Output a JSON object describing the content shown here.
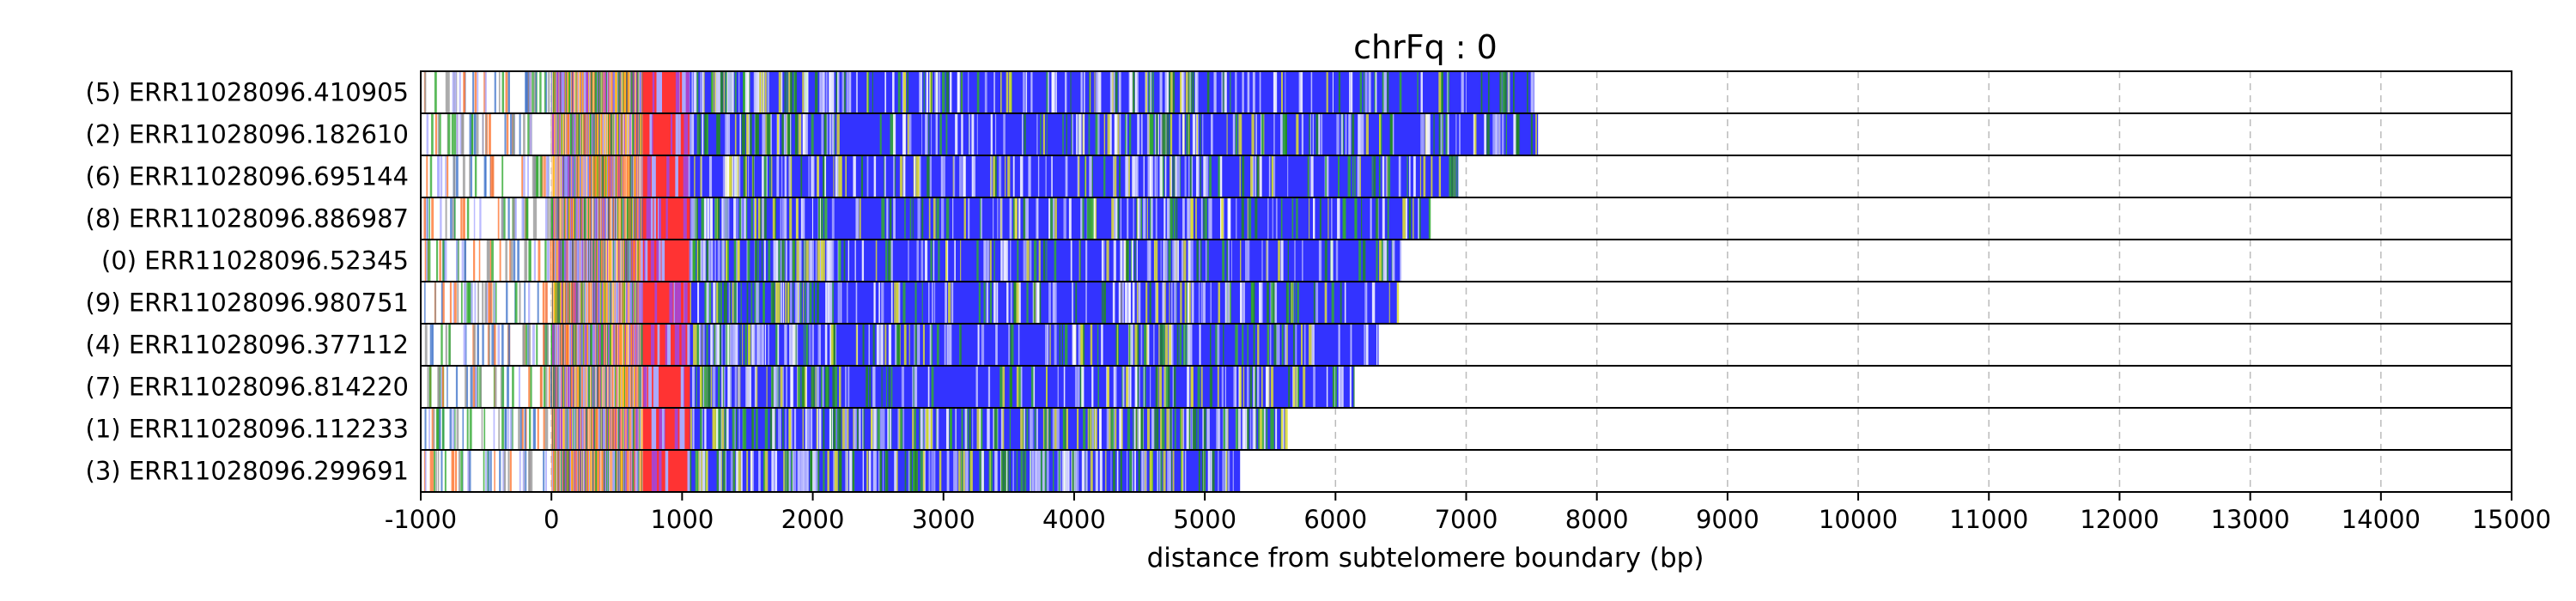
{
  "chart_data": {
    "type": "bar",
    "title": "chrFq : 0",
    "xlabel": "distance from subtelomere boundary (bp)",
    "ylabel": "",
    "xlim": [
      -1000,
      15000
    ],
    "xticks": [
      -1000,
      0,
      1000,
      2000,
      3000,
      4000,
      5000,
      6000,
      7000,
      8000,
      9000,
      10000,
      11000,
      12000,
      13000,
      14000,
      15000
    ],
    "grid": "vertical dashed",
    "colors": {
      "main": "#3333ff",
      "region": "#ff3333",
      "orange": "#ff7733",
      "green": "#33aa33",
      "yellow": "#dddd33",
      "light": "#aaaaff",
      "gold": "#ffbb22",
      "purple": "#aa44cc"
    },
    "reads": [
      {
        "label": "(5) ERR11028096.410905",
        "end": 7520
      },
      {
        "label": "(2) ERR11028096.182610",
        "end": 7550
      },
      {
        "label": "(6) ERR11028096.695144",
        "end": 6940
      },
      {
        "label": "(8) ERR11028096.886987",
        "end": 6720
      },
      {
        "label": "(0) ERR11028096.52345",
        "end": 6500
      },
      {
        "label": "(9) ERR11028096.980751",
        "end": 6470
      },
      {
        "label": "(4) ERR11028096.377112",
        "end": 6330
      },
      {
        "label": "(7) ERR11028096.814220",
        "end": 6140
      },
      {
        "label": "(1) ERR11028096.112233",
        "end": 5620
      },
      {
        "label": "(3) ERR11028096.299691",
        "end": 5270
      }
    ]
  }
}
